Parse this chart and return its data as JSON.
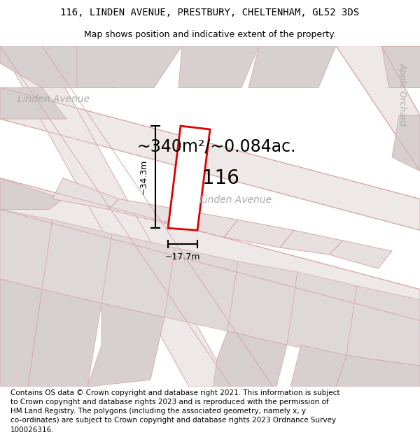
{
  "title_line1": "116, LINDEN AVENUE, PRESTBURY, CHELTENHAM, GL52 3DS",
  "title_line2": "Map shows position and indicative extent of the property.",
  "footer_text": "Contains OS data © Crown copyright and database right 2021. This information is subject to Crown copyright and database rights 2023 and is reproduced with the permission of HM Land Registry. The polygons (including the associated geometry, namely x, y co-ordinates) are subject to Crown copyright and database rights 2023 Ordnance Survey 100026316.",
  "area_label": "~340m²/~0.084ac.",
  "house_number": "116",
  "dim_vertical": "~34.3m",
  "dim_horizontal": "~17.7m",
  "street_label_upper": "Linden Avenue",
  "street_label_lower": "Linden Avenue",
  "side_street_label": "Apple Orchard",
  "background_color": "#ffffff",
  "map_bg_color": "#f7f0f0",
  "plot_outline_color": "#dd0000",
  "building_color": "#d8d0d0",
  "road_fill_color": "#efe8e8",
  "road_line_color": "#d4a8a8",
  "title_fontsize": 10,
  "subtitle_fontsize": 9,
  "footer_fontsize": 7.5
}
